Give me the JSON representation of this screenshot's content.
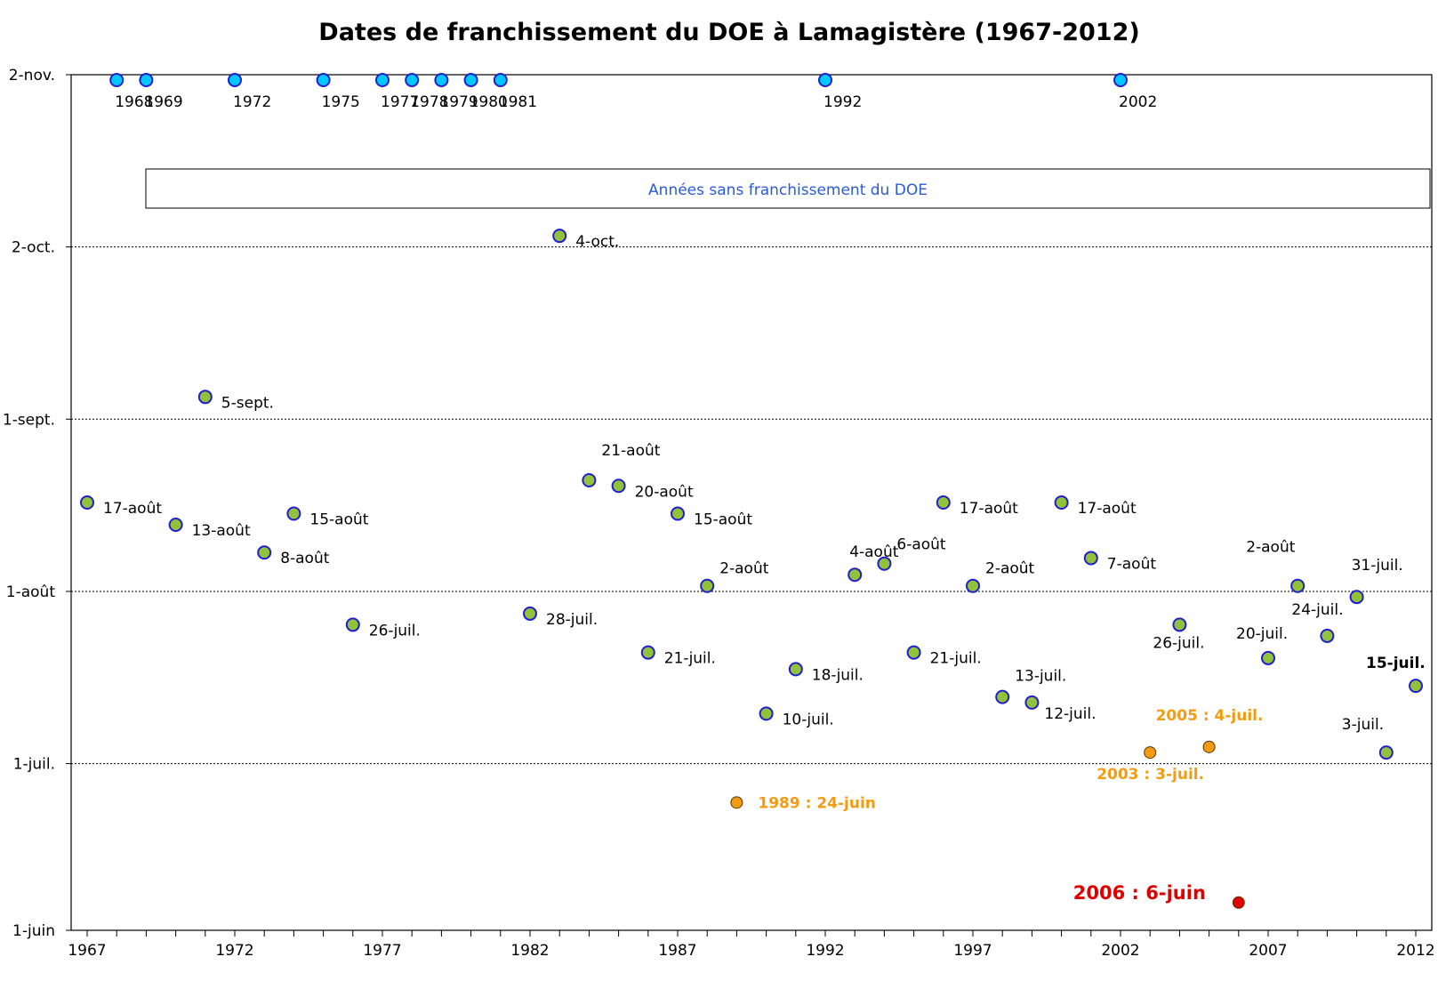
{
  "chart_data": {
    "type": "scatter",
    "title": "Dates de franchissement du DOE à Lamagistère (1967-2012)",
    "xlim": [
      1967,
      2012
    ],
    "x_ticks": [
      1967,
      1972,
      1977,
      1982,
      1987,
      1992,
      1997,
      2002,
      2007,
      2012
    ],
    "y_ticks": [
      {
        "label": "2-nov.",
        "value": "11-02"
      },
      {
        "label": "2-oct.",
        "value": "10-02"
      },
      {
        "label": "1-sept.",
        "value": "09-01"
      },
      {
        "label": "1-août",
        "value": "08-01"
      },
      {
        "label": "1-juil.",
        "value": "07-01"
      },
      {
        "label": "1-juin",
        "value": "06-01"
      }
    ],
    "ylim": [
      "06-01",
      "11-02"
    ],
    "grid": "horizontal-dotted",
    "annotation_box": "Années sans franchissement du DOE",
    "series": [
      {
        "color": "#92c13a",
        "points": [
          {
            "x": 1967,
            "y": "08-17",
            "label": "17-août"
          },
          {
            "x": 1970,
            "y": "08-13",
            "label": "13-août"
          },
          {
            "x": 1971,
            "y": "09-05",
            "label": "5-sept."
          },
          {
            "x": 1973,
            "y": "08-08",
            "label": "8-août"
          },
          {
            "x": 1974,
            "y": "08-15",
            "label": "15-août"
          },
          {
            "x": 1976,
            "y": "07-26",
            "label": "26-juil."
          },
          {
            "x": 1982,
            "y": "07-28",
            "label": "28-juil."
          },
          {
            "x": 1983,
            "y": "10-04",
            "label": "4-oct."
          },
          {
            "x": 1984,
            "y": "08-21",
            "label": "21-août"
          },
          {
            "x": 1985,
            "y": "08-20",
            "label": "20-août"
          },
          {
            "x": 1986,
            "y": "07-21",
            "label": "21-juil."
          },
          {
            "x": 1987,
            "y": "08-15",
            "label": "15-août"
          },
          {
            "x": 1988,
            "y": "08-02",
            "label": "2-août"
          },
          {
            "x": 1990,
            "y": "07-10",
            "label": "10-juil."
          },
          {
            "x": 1991,
            "y": "07-18",
            "label": "18-juil."
          },
          {
            "x": 1993,
            "y": "08-04",
            "label": "4-août"
          },
          {
            "x": 1994,
            "y": "08-06",
            "label": "6-août"
          },
          {
            "x": 1995,
            "y": "07-21",
            "label": "21-juil."
          },
          {
            "x": 1996,
            "y": "08-17",
            "label": "17-août"
          },
          {
            "x": 1997,
            "y": "08-02",
            "label": "2-août"
          },
          {
            "x": 1998,
            "y": "07-13",
            "label": "13-juil."
          },
          {
            "x": 1999,
            "y": "07-12",
            "label": "12-juil."
          },
          {
            "x": 2000,
            "y": "08-17",
            "label": "17-août"
          },
          {
            "x": 2001,
            "y": "08-07",
            "label": "7-août"
          },
          {
            "x": 2004,
            "y": "07-26",
            "label": "26-juil."
          },
          {
            "x": 2007,
            "y": "07-20",
            "label": "20-juil."
          },
          {
            "x": 2008,
            "y": "08-02",
            "label": "2-août"
          },
          {
            "x": 2009,
            "y": "07-24",
            "label": "24-juil."
          },
          {
            "x": 2010,
            "y": "07-31",
            "label": "31-juil."
          },
          {
            "x": 2011,
            "y": "07-03",
            "label": "3-juil."
          },
          {
            "x": 2012,
            "y": "07-15",
            "label": "15-juil."
          }
        ]
      },
      {
        "color": "#f39c12",
        "points": [
          {
            "x": 1989,
            "y": "06-24",
            "label": "1989 : 24-juin"
          },
          {
            "x": 2003,
            "y": "07-03",
            "label": "2003 : 3-juil."
          },
          {
            "x": 2005,
            "y": "07-04",
            "label": "2005 : 4-juil."
          }
        ]
      },
      {
        "color": "#e00000",
        "points": [
          {
            "x": 2006,
            "y": "06-06",
            "label": "2006 : 6-juin"
          }
        ]
      },
      {
        "color": "#00c8ff",
        "points": [
          {
            "x": 1968,
            "y": "11-01",
            "label": "1968"
          },
          {
            "x": 1969,
            "y": "11-01",
            "label": "1969"
          },
          {
            "x": 1972,
            "y": "11-01",
            "label": "1972"
          },
          {
            "x": 1975,
            "y": "11-01",
            "label": "1975"
          },
          {
            "x": 1977,
            "y": "11-01",
            "label": "1977"
          },
          {
            "x": 1978,
            "y": "11-01",
            "label": "1978"
          },
          {
            "x": 1979,
            "y": "11-01",
            "label": "1979"
          },
          {
            "x": 1980,
            "y": "11-01",
            "label": "1980"
          },
          {
            "x": 1981,
            "y": "11-01",
            "label": "1981"
          },
          {
            "x": 1992,
            "y": "11-01",
            "label": "1992"
          },
          {
            "x": 2002,
            "y": "11-01",
            "label": "2002"
          }
        ]
      }
    ]
  }
}
